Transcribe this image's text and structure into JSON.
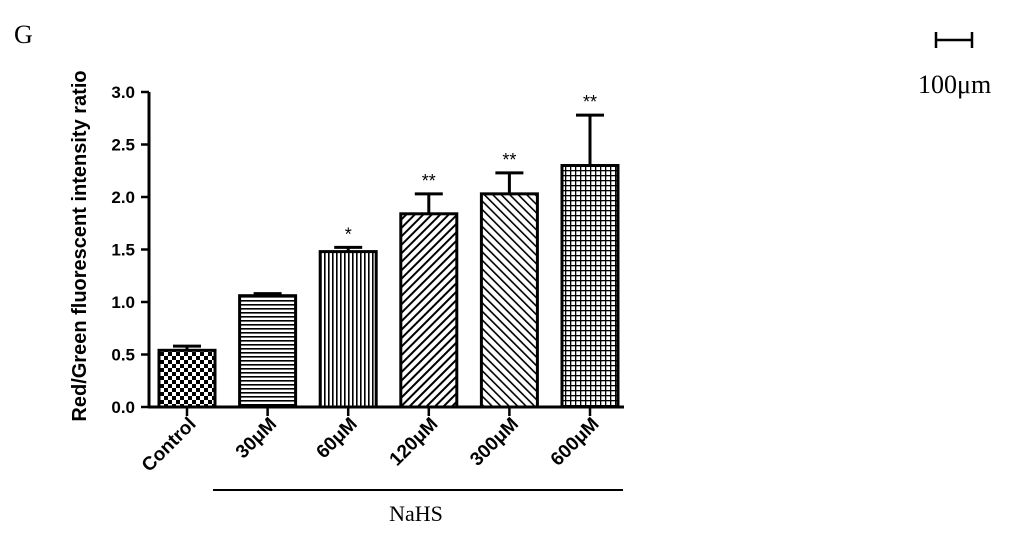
{
  "panel_label": "G",
  "scale_bar_label": "100μm",
  "chart_data": {
    "type": "bar",
    "categories": [
      "Control",
      "30μM",
      "60μM",
      "120μM",
      "300μM",
      "600μM"
    ],
    "values": [
      0.54,
      1.06,
      1.48,
      1.84,
      2.03,
      2.3
    ],
    "errors": [
      0.04,
      0.02,
      0.04,
      0.19,
      0.2,
      0.48
    ],
    "significance": [
      "",
      "",
      "*",
      "**",
      "**",
      "**"
    ],
    "patterns": [
      "checker",
      "horizontal",
      "vertical",
      "diag-up",
      "diag-down",
      "grid"
    ],
    "ylabel": "Red/Green fluorescent intensity ratio",
    "xlabel": "",
    "group_label": "NaHS",
    "ylim": [
      0,
      3.0
    ],
    "yticks": [
      "0.0",
      "0.5",
      "1.0",
      "1.5",
      "2.0",
      "2.5",
      "3.0"
    ],
    "grid": false
  }
}
